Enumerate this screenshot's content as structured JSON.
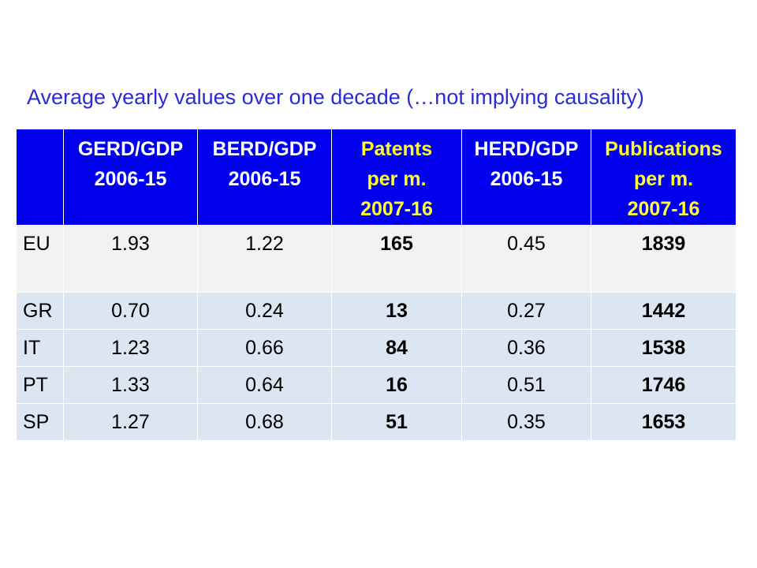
{
  "title": "Average yearly values over one decade (…not implying causality)",
  "table": {
    "headers": [
      {
        "lines": [
          ""
        ],
        "highlight": false
      },
      {
        "lines": [
          "GERD/GDP",
          "2006-15"
        ],
        "highlight": false
      },
      {
        "lines": [
          "BERD/GDP",
          "2006-15"
        ],
        "highlight": false
      },
      {
        "lines": [
          "Patents",
          "per m.",
          "2007-16"
        ],
        "highlight": true
      },
      {
        "lines": [
          "HERD/GDP",
          "2006-15"
        ],
        "highlight": false
      },
      {
        "lines": [
          "Publications",
          "per m.",
          "2007-16"
        ],
        "highlight": true
      }
    ],
    "rows": [
      {
        "country": "EU",
        "gerd": "1.93",
        "berd": "1.22",
        "patents": "165",
        "herd": "0.45",
        "publications": "1839"
      },
      {
        "country": "GR",
        "gerd": "0.70",
        "berd": "0.24",
        "patents": "13",
        "herd": "0.27",
        "publications": "1442"
      },
      {
        "country": "IT",
        "gerd": "1.23",
        "berd": "0.66",
        "patents": "84",
        "herd": "0.36",
        "publications": "1538"
      },
      {
        "country": "PT",
        "gerd": "1.33",
        "berd": "0.64",
        "patents": "16",
        "herd": "0.51",
        "publications": "1746"
      },
      {
        "country": "SP",
        "gerd": "1.27",
        "berd": "0.68",
        "patents": "51",
        "herd": "0.35",
        "publications": "1653"
      }
    ]
  },
  "colors": {
    "title": "#2b2bd6",
    "header_bg": "#0000ee",
    "header_text": "#ffffff",
    "header_highlight_text": "#ffff33",
    "eu_row_bg": "#f2f2f2",
    "country_row_bg": "#dce6f2"
  }
}
